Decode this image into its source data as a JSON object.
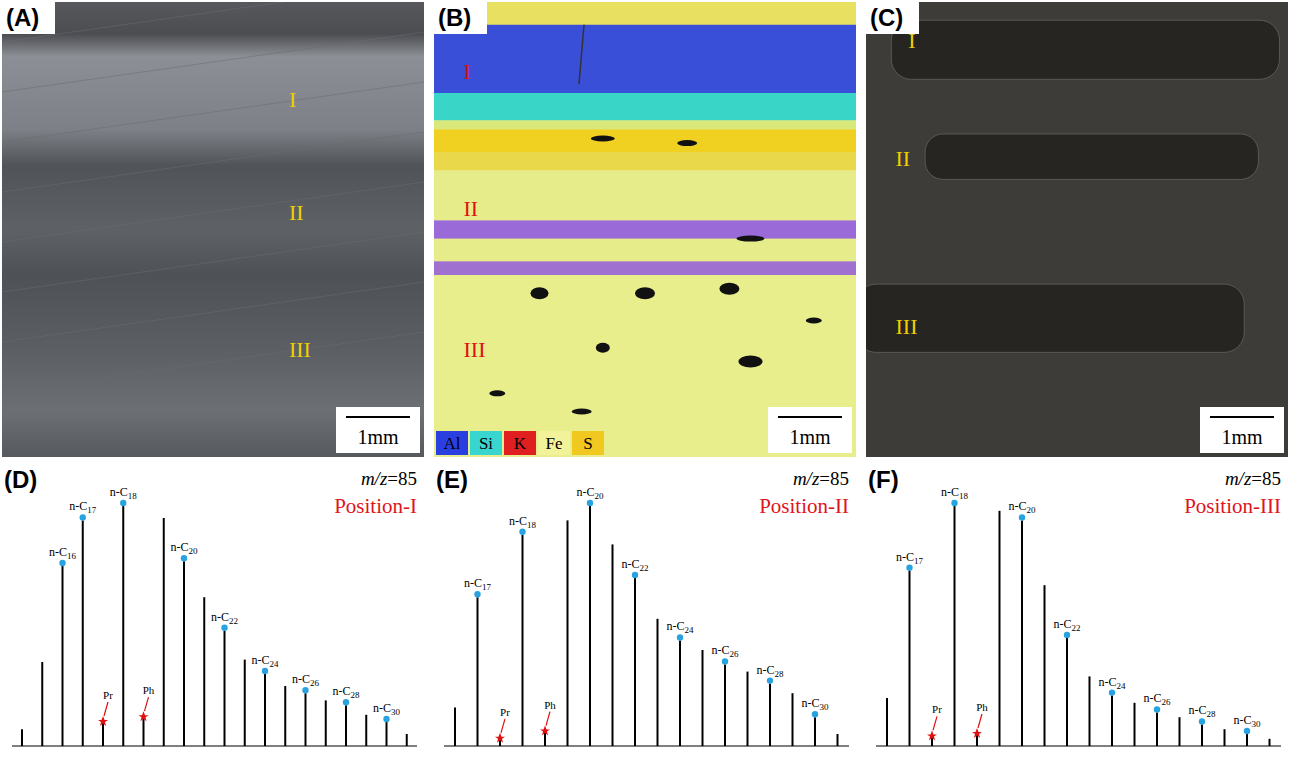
{
  "panels": [
    {
      "letter": "(A)",
      "labels": [
        "I",
        "II",
        "III"
      ],
      "color": "#f0d000",
      "scale_bar": "1mm"
    },
    {
      "letter": "(B)",
      "labels": [
        "I",
        "II",
        "III"
      ],
      "color": "#e01010",
      "scale_bar": "1mm",
      "element_legend": [
        {
          "name": "Al",
          "color": "#2a3fe0"
        },
        {
          "name": "Si",
          "color": "#39d6d0"
        },
        {
          "name": "K",
          "color": "#e02020"
        },
        {
          "name": "Fe",
          "color": "#f2f29a"
        },
        {
          "name": "S",
          "color": "#f0c820"
        }
      ]
    },
    {
      "letter": "(C)",
      "labels": [
        "I",
        "II",
        "III"
      ],
      "color": "#f0d000",
      "scale_bar": "1mm"
    }
  ],
  "chart_data": [
    {
      "letter": "(D)",
      "type": "bar",
      "subtitle": "m/z=85",
      "title": "Position-I",
      "tick_labels": false,
      "color": "#000000",
      "ylim": [
        0,
        100
      ],
      "categories": [
        null,
        null,
        "n-C16",
        "n-C17",
        "Pr",
        "n-C18",
        "Ph",
        null,
        "n-C20",
        null,
        "n-C22",
        null,
        "n-C24",
        null,
        "n-C26",
        null,
        "n-C28",
        null,
        "n-C30",
        null
      ],
      "values": [
        7,
        35,
        75,
        94,
        10,
        100,
        12,
        95,
        77,
        62,
        48,
        36,
        30,
        25,
        22,
        19,
        17,
        13,
        10,
        5
      ]
    },
    {
      "letter": "(E)",
      "type": "bar",
      "subtitle": "m/z=85",
      "title": "Position-II",
      "tick_labels": false,
      "color": "#000000",
      "ylim": [
        0,
        100
      ],
      "categories": [
        null,
        "n-C17",
        "Pr",
        "n-C18",
        "Ph",
        null,
        "n-C20",
        null,
        "n-C22",
        null,
        "n-C24",
        null,
        "n-C26",
        null,
        "n-C28",
        null,
        "n-C30",
        null
      ],
      "values": [
        16,
        62,
        3,
        88,
        6,
        94,
        100,
        84,
        70,
        53,
        44,
        40,
        34,
        31,
        26,
        22,
        12,
        5
      ]
    },
    {
      "letter": "(F)",
      "type": "bar",
      "subtitle": "m/z=85",
      "title": "Position-III",
      "tick_labels": false,
      "color": "#000000",
      "ylim": [
        0,
        100
      ],
      "categories": [
        null,
        "n-C17",
        "Pr",
        "n-C18",
        "Ph",
        null,
        "n-C20",
        null,
        "n-C22",
        null,
        "n-C24",
        null,
        "n-C26",
        null,
        "n-C28",
        null,
        "n-C30",
        null
      ],
      "values": [
        20,
        73,
        4,
        100,
        5,
        98,
        94,
        67,
        45,
        29,
        21,
        18,
        14,
        12,
        9,
        7,
        5,
        3
      ]
    }
  ]
}
